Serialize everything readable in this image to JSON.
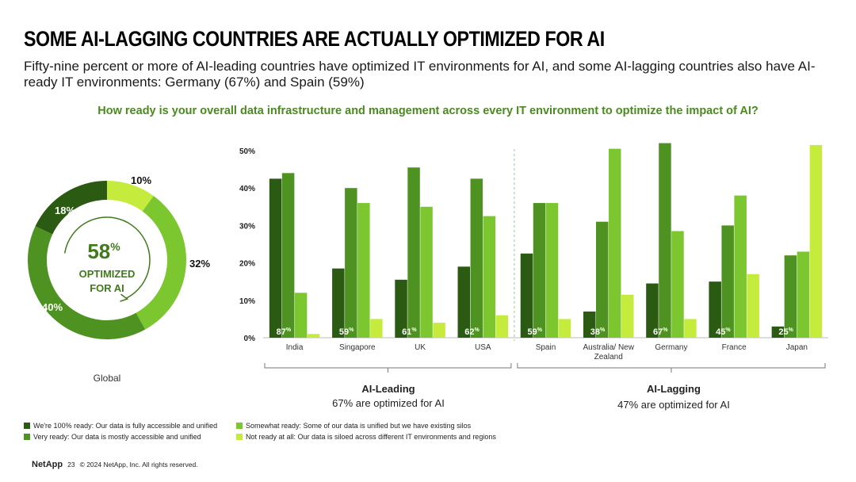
{
  "title": "SOME AI-LAGGING COUNTRIES ARE ACTUALLY OPTIMIZED FOR AI",
  "subtitle": "Fifty-nine percent or more of AI-leading countries have optimized IT environments for AI, and some AI-lagging countries also have AI-ready IT environments: Germany (67%) and Spain (59%)",
  "question": "How ready is your overall data infrastructure and management across every IT environment to optimize the impact of AI?",
  "colors": {
    "fully": "#2b5a12",
    "very": "#4e9322",
    "somewhat": "#7cc630",
    "not": "#c5ec3d",
    "question": "#4a8a1e"
  },
  "donut": {
    "center_value": "58",
    "center_pct": "%",
    "center_line1": "OPTIMIZED",
    "center_line2": "FOR AI",
    "label": "Global",
    "slices": [
      {
        "key": "fully",
        "value": 18,
        "label": "18%"
      },
      {
        "key": "not",
        "value": 10,
        "label": "10%"
      },
      {
        "key": "somewhat",
        "value": 32,
        "label": "32%"
      },
      {
        "key": "very",
        "value": 40,
        "label": "40%"
      }
    ]
  },
  "chart_data": {
    "type": "bar",
    "ylim": [
      0,
      50
    ],
    "yticks": [
      "0%",
      "10%",
      "20%",
      "30%",
      "40%",
      "50%"
    ],
    "categories": [
      "India",
      "Singapore",
      "UK",
      "USA",
      "Spain",
      "Australia/ New Zealand",
      "Germany",
      "France",
      "Japan"
    ],
    "optimized_labels": [
      "87",
      "59",
      "61",
      "62",
      "59",
      "38",
      "67",
      "45",
      "25"
    ],
    "series": [
      {
        "key": "fully",
        "name": "We're 100% ready: Our data is fully accessible and unified",
        "values": [
          42.5,
          18.5,
          15.5,
          19,
          22.5,
          7,
          14.5,
          15,
          3
        ]
      },
      {
        "key": "very",
        "name": "Very ready: Our data is mostly accessible and unified",
        "values": [
          44,
          40,
          45.5,
          42.5,
          36,
          31,
          52,
          30,
          22
        ]
      },
      {
        "key": "somewhat",
        "name": "Somewhat ready: Some of our data is unified but we have existing silos",
        "values": [
          12,
          36,
          35,
          32.5,
          36,
          50.5,
          28.5,
          38,
          23
        ]
      },
      {
        "key": "not",
        "name": "Not ready at all: Our data is siloed across different IT environments and regions",
        "values": [
          1,
          5,
          4,
          6,
          5,
          11.5,
          5,
          17,
          51.5
        ]
      }
    ]
  },
  "groups": [
    {
      "name": "AI-Leading",
      "sub": "67% are optimized for AI"
    },
    {
      "name": "AI-Lagging",
      "sub": "47% are optimized for AI"
    }
  ],
  "footer": {
    "logo": "NetApp",
    "page": "23",
    "copyright": "© 2024 NetApp, Inc. All rights reserved."
  }
}
